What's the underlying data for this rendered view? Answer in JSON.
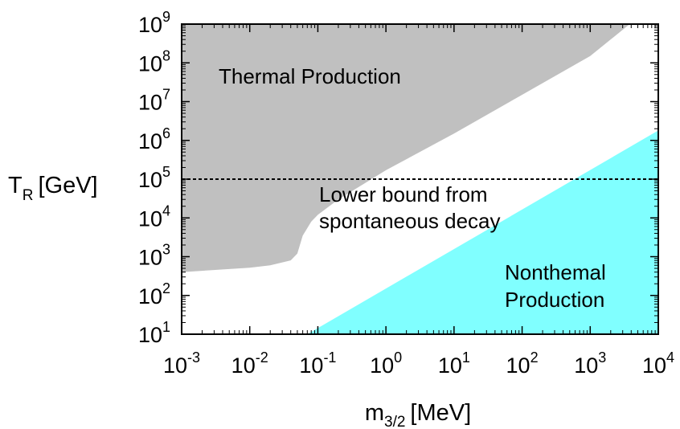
{
  "chart_data": {
    "type": "area",
    "xlabel": {
      "main": "m",
      "sub": "3/2",
      "unit": "[MeV]"
    },
    "ylabel": {
      "main": "T",
      "sub": "R",
      "unit": "[GeV]"
    },
    "x_scale": "log",
    "y_scale": "log",
    "xlim": [
      0.001,
      10000
    ],
    "ylim": [
      10,
      1000000000
    ],
    "grid": false,
    "x_ticks": [
      {
        "base": "10",
        "exp": "-3"
      },
      {
        "base": "10",
        "exp": "-2"
      },
      {
        "base": "10",
        "exp": "-1"
      },
      {
        "base": "10",
        "exp": "0"
      },
      {
        "base": "10",
        "exp": "1"
      },
      {
        "base": "10",
        "exp": "2"
      },
      {
        "base": "10",
        "exp": "3"
      },
      {
        "base": "10",
        "exp": "4"
      }
    ],
    "y_ticks": [
      {
        "base": "10",
        "exp": "1"
      },
      {
        "base": "10",
        "exp": "2"
      },
      {
        "base": "10",
        "exp": "3"
      },
      {
        "base": "10",
        "exp": "4"
      },
      {
        "base": "10",
        "exp": "5"
      },
      {
        "base": "10",
        "exp": "6"
      },
      {
        "base": "10",
        "exp": "7"
      },
      {
        "base": "10",
        "exp": "8"
      },
      {
        "base": "10",
        "exp": "9"
      }
    ],
    "regions": [
      {
        "label": "Thermal Production",
        "color": "#c0c0c0",
        "boundary": [
          [
            0.001,
            400
          ],
          [
            0.005,
            480
          ],
          [
            0.01,
            520
          ],
          [
            0.02,
            600
          ],
          [
            0.04,
            800
          ],
          [
            0.05,
            1200
          ],
          [
            0.06,
            3500
          ],
          [
            0.08,
            8000
          ],
          [
            0.1,
            12000
          ],
          [
            0.2,
            30000
          ],
          [
            0.5,
            80000
          ],
          [
            1,
            170000
          ],
          [
            10,
            1500000
          ],
          [
            100,
            15000000
          ],
          [
            1000,
            150000000
          ],
          [
            3800,
            1000000000
          ]
        ]
      },
      {
        "label": "Nonthemal\nProduction",
        "color": "#80ffff",
        "boundary": [
          [
            0.07,
            10
          ],
          [
            10000,
            1800000
          ]
        ]
      }
    ],
    "dashed_line": {
      "y": 100000,
      "label": "Lower bound from\nspontaneous decay"
    },
    "annotations": [
      {
        "id": "thermal",
        "text": "Thermal Production"
      },
      {
        "id": "nonthermal_1",
        "text": "Nonthemal"
      },
      {
        "id": "nonthermal_2",
        "text": "Production"
      },
      {
        "id": "lower_1",
        "text": "Lower bound from"
      },
      {
        "id": "lower_2",
        "text": "spontaneous decay"
      }
    ]
  }
}
